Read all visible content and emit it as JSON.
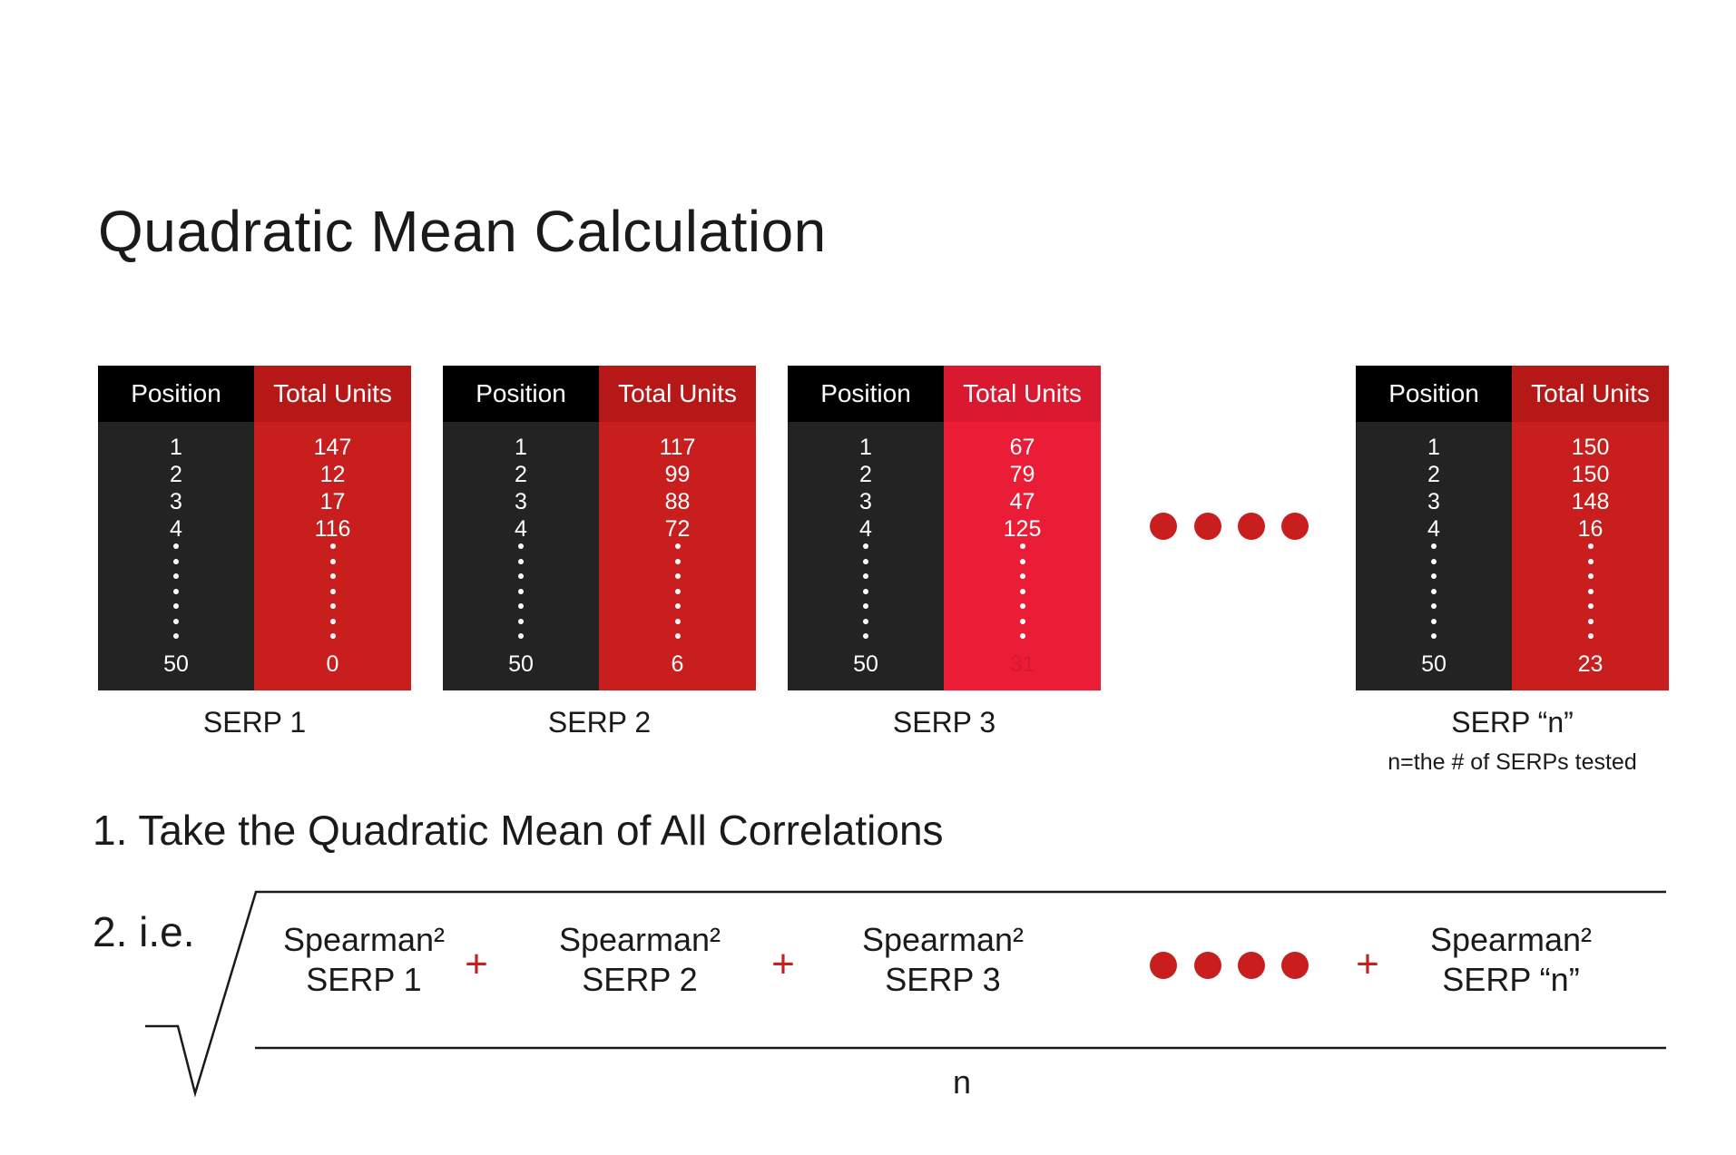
{
  "title": "Quadratic Mean Calculation",
  "colors": {
    "black_header": "#000000",
    "dark_body": "#232323",
    "red_standard": "#c91e1e",
    "red_standard_header": "#b61818",
    "red_bright": "#eb1c36",
    "red_bright_header": "#d8192f",
    "accent": "#c91e1e"
  },
  "tables": [
    {
      "position_header": "Position",
      "units_header": "Total Units",
      "positions": [
        "1",
        "2",
        "3",
        "4"
      ],
      "units": [
        "147",
        "12",
        "17",
        "116"
      ],
      "last_position": "50",
      "last_unit": "0",
      "label": "SERP 1",
      "note": ""
    },
    {
      "position_header": "Position",
      "units_header": "Total Units",
      "positions": [
        "1",
        "2",
        "3",
        "4"
      ],
      "units": [
        "117",
        "99",
        "88",
        "72"
      ],
      "last_position": "50",
      "last_unit": "6",
      "label": "SERP 2",
      "note": ""
    },
    {
      "position_header": "Position",
      "units_header": "Total Units",
      "positions": [
        "1",
        "2",
        "3",
        "4"
      ],
      "units": [
        "67",
        "79",
        "47",
        "125"
      ],
      "last_position": "50",
      "last_unit": "31",
      "label": "SERP 3",
      "note": ""
    },
    {
      "position_header": "Position",
      "units_header": "Total Units",
      "positions": [
        "1",
        "2",
        "3",
        "4"
      ],
      "units": [
        "150",
        "150",
        "148",
        "16"
      ],
      "last_position": "50",
      "last_unit": "23",
      "label": "SERP “n”",
      "note": "n=the # of SERPs tested"
    }
  ],
  "step1": "1. Take the Quadratic Mean of All Correlations",
  "step2": "2. i.e.",
  "formula": {
    "terms": [
      {
        "line1": "Spearman²",
        "line2": "SERP 1"
      },
      {
        "line1": "Spearman²",
        "line2": "SERP 2"
      },
      {
        "line1": "Spearman²",
        "line2": "SERP 3"
      },
      {
        "line1": "Spearman²",
        "line2": "SERP “n”"
      }
    ],
    "plus": "+",
    "denominator": "n"
  }
}
